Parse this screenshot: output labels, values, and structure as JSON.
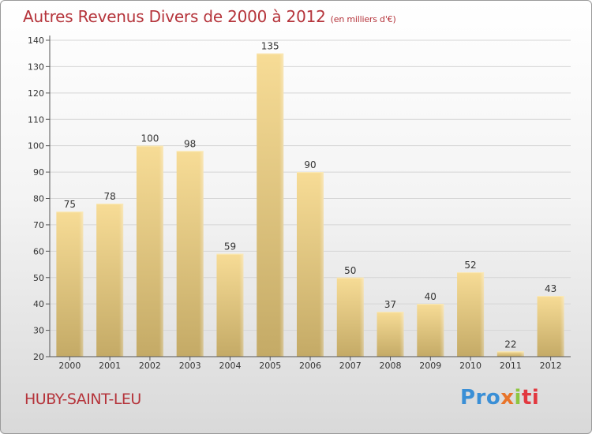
{
  "header": {
    "title": "Autres Revenus Divers de 2000 à 2012",
    "unit": "(en milliers d'€)"
  },
  "footer": {
    "place": "HUBY-SAINT-LEU",
    "logo_text": "Proxiti",
    "logo_parts": [
      "Pro",
      "x",
      "i",
      "ti"
    ]
  },
  "colors": {
    "title": "#b5343b",
    "bar_light": "#f7dc96",
    "bar_dark": "#c4aa66",
    "grid": "#d5d5d5"
  },
  "chart_data": {
    "type": "bar",
    "categories": [
      "2000",
      "2001",
      "2002",
      "2003",
      "2004",
      "2005",
      "2006",
      "2007",
      "2008",
      "2009",
      "2010",
      "2011",
      "2012"
    ],
    "values": [
      75,
      78,
      100,
      98,
      59,
      135,
      90,
      50,
      37,
      40,
      52,
      22,
      43
    ],
    "yticks": [
      20,
      30,
      40,
      50,
      60,
      70,
      80,
      90,
      100,
      110,
      120,
      130,
      140
    ],
    "ylim": [
      20,
      140
    ],
    "grid": true,
    "legend": "none",
    "data_labels": true
  }
}
